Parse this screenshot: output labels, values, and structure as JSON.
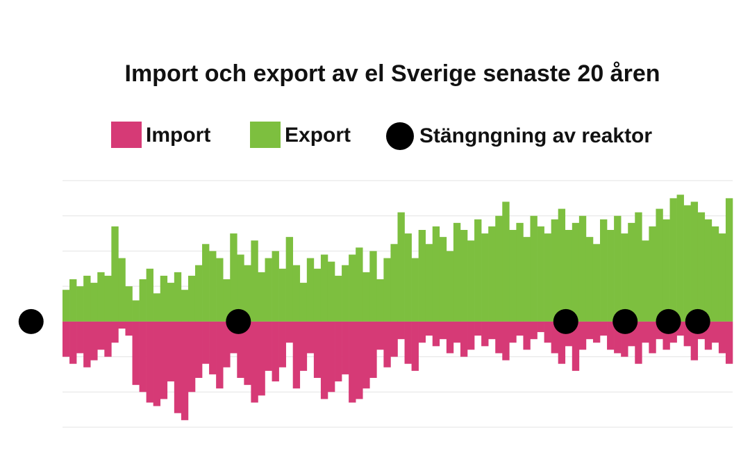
{
  "chart_data": {
    "type": "bar",
    "title": "Import och export av el Sverige senaste 20 åren",
    "categories": [
      null,
      null,
      null,
      null,
      null,
      null,
      null,
      null,
      null,
      null,
      null,
      null,
      null,
      null,
      null,
      null,
      null,
      null,
      null,
      null,
      null,
      null,
      null,
      null,
      null,
      null,
      null,
      null,
      null,
      null,
      null,
      null,
      null,
      null,
      null,
      null,
      null,
      null,
      null,
      null,
      null,
      null,
      null,
      null,
      null,
      null,
      null,
      null,
      null,
      null,
      null,
      null,
      null,
      null,
      null,
      null,
      null,
      null,
      null,
      null,
      null,
      null,
      null,
      null,
      null,
      null,
      null,
      null,
      null,
      null,
      null,
      null,
      null,
      null,
      null,
      null,
      null,
      null,
      null,
      null,
      null,
      null,
      null,
      null,
      null,
      null,
      null,
      null,
      null,
      null,
      null,
      null,
      null,
      null,
      null,
      null
    ],
    "ylim": [
      -3,
      4
    ],
    "grid": true,
    "series": [
      {
        "name": "Import",
        "color": "#d63a76",
        "values": [
          -1.0,
          -1.2,
          -0.9,
          -1.3,
          -1.1,
          -0.8,
          -1.0,
          -0.6,
          -0.2,
          -0.4,
          -1.8,
          -2.0,
          -2.3,
          -2.4,
          -2.2,
          -1.7,
          -2.6,
          -2.8,
          -2.0,
          -1.6,
          -1.2,
          -1.5,
          -1.9,
          -1.3,
          -0.9,
          -1.6,
          -1.8,
          -2.3,
          -2.1,
          -1.4,
          -1.7,
          -1.3,
          -0.6,
          -1.9,
          -1.4,
          -0.9,
          -1.6,
          -2.2,
          -2.0,
          -1.7,
          -1.5,
          -2.3,
          -2.2,
          -1.9,
          -1.6,
          -0.8,
          -1.3,
          -1.0,
          -0.5,
          -1.2,
          -1.4,
          -0.6,
          -0.4,
          -0.7,
          -0.5,
          -0.9,
          -0.6,
          -1.0,
          -0.8,
          -0.4,
          -0.7,
          -0.5,
          -0.9,
          -1.1,
          -0.6,
          -0.4,
          -0.8,
          -0.5,
          -0.3,
          -0.6,
          -0.9,
          -1.2,
          -0.7,
          -1.4,
          -0.8,
          -0.5,
          -0.6,
          -0.4,
          -0.8,
          -0.9,
          -1.0,
          -0.7,
          -1.2,
          -0.6,
          -0.9,
          -0.5,
          -0.8,
          -0.6,
          -0.4,
          -0.7,
          -1.1,
          -0.5,
          -0.8,
          -0.6,
          -0.9,
          -1.2
        ]
      },
      {
        "name": "Export",
        "color": "#7dbf3f",
        "values": [
          0.9,
          1.2,
          1.0,
          1.3,
          1.1,
          1.4,
          1.3,
          2.7,
          1.8,
          1.0,
          0.6,
          1.2,
          1.5,
          0.8,
          1.3,
          1.1,
          1.4,
          0.9,
          1.3,
          1.6,
          2.2,
          2.0,
          1.8,
          1.2,
          2.5,
          1.9,
          1.6,
          2.3,
          1.4,
          1.8,
          2.0,
          1.5,
          2.4,
          1.6,
          1.1,
          1.8,
          1.5,
          1.9,
          1.7,
          1.3,
          1.6,
          1.9,
          2.1,
          1.4,
          2.0,
          1.2,
          1.8,
          2.2,
          3.1,
          2.5,
          1.8,
          2.6,
          2.2,
          2.7,
          2.4,
          2.0,
          2.8,
          2.6,
          2.3,
          2.9,
          2.5,
          2.7,
          3.0,
          3.4,
          2.6,
          2.8,
          2.4,
          3.0,
          2.7,
          2.5,
          2.9,
          3.2,
          2.6,
          2.8,
          3.0,
          2.4,
          2.2,
          2.9,
          2.6,
          3.0,
          2.5,
          2.8,
          3.1,
          2.3,
          2.7,
          3.2,
          2.9,
          3.5,
          3.6,
          3.3,
          3.4,
          3.1,
          2.9,
          2.7,
          2.5,
          3.5
        ]
      }
    ],
    "markers": {
      "name": "Stängngning av reaktor",
      "color": "#000000",
      "x": [
        -4.5,
        25.2,
        72.1,
        80.6,
        86.8,
        91.0
      ],
      "values": [
        0,
        0,
        0,
        0,
        0,
        0
      ]
    }
  }
}
